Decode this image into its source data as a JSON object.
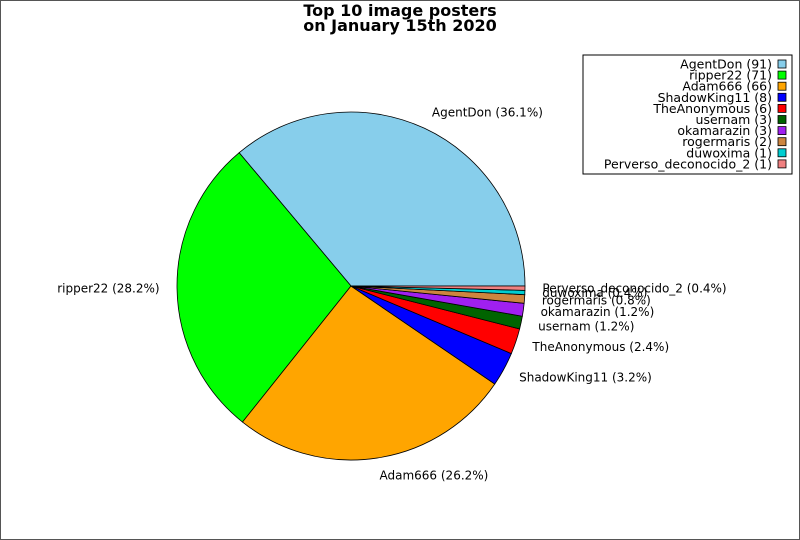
{
  "chart_data": {
    "type": "pie",
    "title": [
      "Top 10 image posters",
      "on January 15th 2020"
    ],
    "legend_position": "top-right",
    "slices": [
      {
        "name": "AgentDon",
        "value": 91,
        "legend": "AgentDon (91)",
        "label": "AgentDon (36.1%)",
        "color": "#87ceeb"
      },
      {
        "name": "ripper22",
        "value": 71,
        "legend": "ripper22 (71)",
        "label": "ripper22 (28.2%)",
        "color": "#00ff00"
      },
      {
        "name": "Adam666",
        "value": 66,
        "legend": "Adam666 (66)",
        "label": "Adam666 (26.2%)",
        "color": "#ffa500"
      },
      {
        "name": "ShadowKing11",
        "value": 8,
        "legend": "ShadowKing11 (8)",
        "label": "ShadowKing11 (3.2%)",
        "color": "#0000ff"
      },
      {
        "name": "TheAnonymous",
        "value": 6,
        "legend": "TheAnonymous (6)",
        "label": "TheAnonymous (2.4%)",
        "color": "#ff0000"
      },
      {
        "name": "usernam",
        "value": 3,
        "legend": "usernam (3)",
        "label": "usernam (1.2%)",
        "color": "#006400"
      },
      {
        "name": "okamarazin",
        "value": 3,
        "legend": "okamarazin (3)",
        "label": "okamarazin (1.2%)",
        "color": "#a020f0"
      },
      {
        "name": "rogermaris",
        "value": 2,
        "legend": "rogermaris (2)",
        "label": "rogermaris (0.8%)",
        "color": "#cd853f"
      },
      {
        "name": "duwoxima",
        "value": 1,
        "legend": "duwoxima (1)",
        "label": "duwoxima (0.4%)",
        "color": "#00ced1"
      },
      {
        "name": "Perverso_deconocido_2",
        "value": 1,
        "legend": "Perverso_deconocido_2 (1)",
        "label": "Perverso_deconocido_2 (0.4%)",
        "color": "#f08080"
      }
    ]
  }
}
